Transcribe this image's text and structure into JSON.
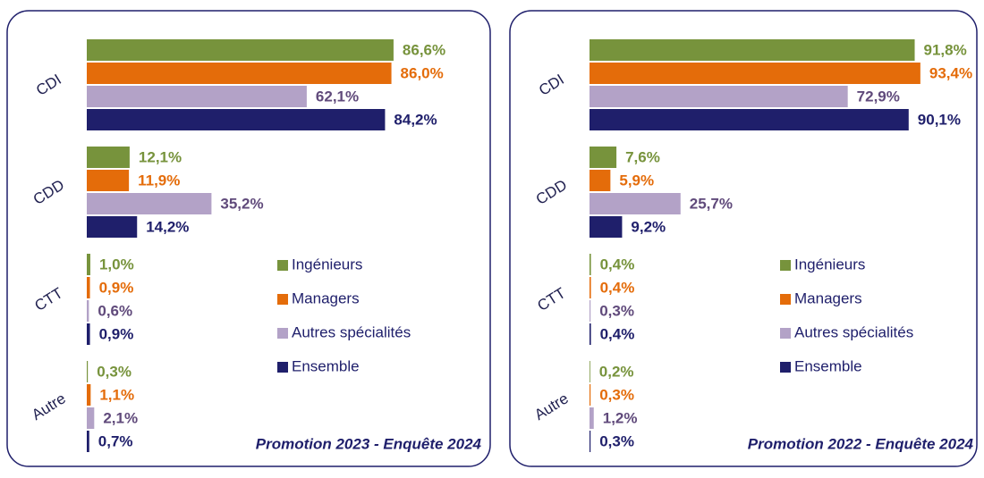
{
  "chart_data": [
    {
      "type": "barh",
      "annotation": "Promotion 2023 - Enquête 2024",
      "categories": [
        "CDI",
        "CDD",
        "CTT",
        "Autre"
      ],
      "xlim": [
        0,
        100
      ],
      "series": [
        {
          "name": "Ingénieurs",
          "color": "#77933c",
          "label_color": "#77933c",
          "values": [
            86.6,
            12.1,
            1.0,
            0.3
          ],
          "value_labels": [
            "86,6%",
            "12,1%",
            "1,0%",
            "0,3%"
          ]
        },
        {
          "name": "Managers",
          "color": "#e46c0a",
          "label_color": "#e46c0a",
          "values": [
            86.0,
            11.9,
            0.9,
            1.1
          ],
          "value_labels": [
            "86,0%",
            "11,9%",
            "0,9%",
            "1,1%"
          ]
        },
        {
          "name": "Autres spécialités",
          "color": "#b3a2c7",
          "label_color": "#604a7b",
          "values": [
            62.1,
            35.2,
            0.6,
            2.1
          ],
          "value_labels": [
            "62,1%",
            "35,2%",
            "0,6%",
            "2,1%"
          ]
        },
        {
          "name": "Ensemble",
          "color": "#1f1f6b",
          "label_color": "#1f1f6b",
          "values": [
            84.2,
            14.2,
            0.9,
            0.7
          ],
          "value_labels": [
            "84,2%",
            "14,2%",
            "0,9%",
            "0,7%"
          ]
        }
      ]
    },
    {
      "type": "barh",
      "annotation": "Promotion 2022 - Enquête 2024",
      "categories": [
        "CDI",
        "CDD",
        "CTT",
        "Autre"
      ],
      "xlim": [
        0,
        100
      ],
      "series": [
        {
          "name": "Ingénieurs",
          "color": "#77933c",
          "label_color": "#77933c",
          "values": [
            91.8,
            7.6,
            0.4,
            0.2
          ],
          "value_labels": [
            "91,8%",
            "7,6%",
            "0,4%",
            "0,2%"
          ]
        },
        {
          "name": "Managers",
          "color": "#e46c0a",
          "label_color": "#e46c0a",
          "values": [
            93.4,
            5.9,
            0.4,
            0.3
          ],
          "value_labels": [
            "93,4%",
            "5,9%",
            "0,4%",
            "0,3%"
          ]
        },
        {
          "name": "Autres spécialités",
          "color": "#b3a2c7",
          "label_color": "#604a7b",
          "values": [
            72.9,
            25.7,
            0.3,
            1.2
          ],
          "value_labels": [
            "72,9%",
            "25,7%",
            "0,3%",
            "1,2%"
          ]
        },
        {
          "name": "Ensemble",
          "color": "#1f1f6b",
          "label_color": "#1f1f6b",
          "values": [
            90.1,
            9.2,
            0.4,
            0.3
          ],
          "value_labels": [
            "90,1%",
            "9,2%",
            "0,4%",
            "0,3%"
          ]
        }
      ]
    }
  ]
}
